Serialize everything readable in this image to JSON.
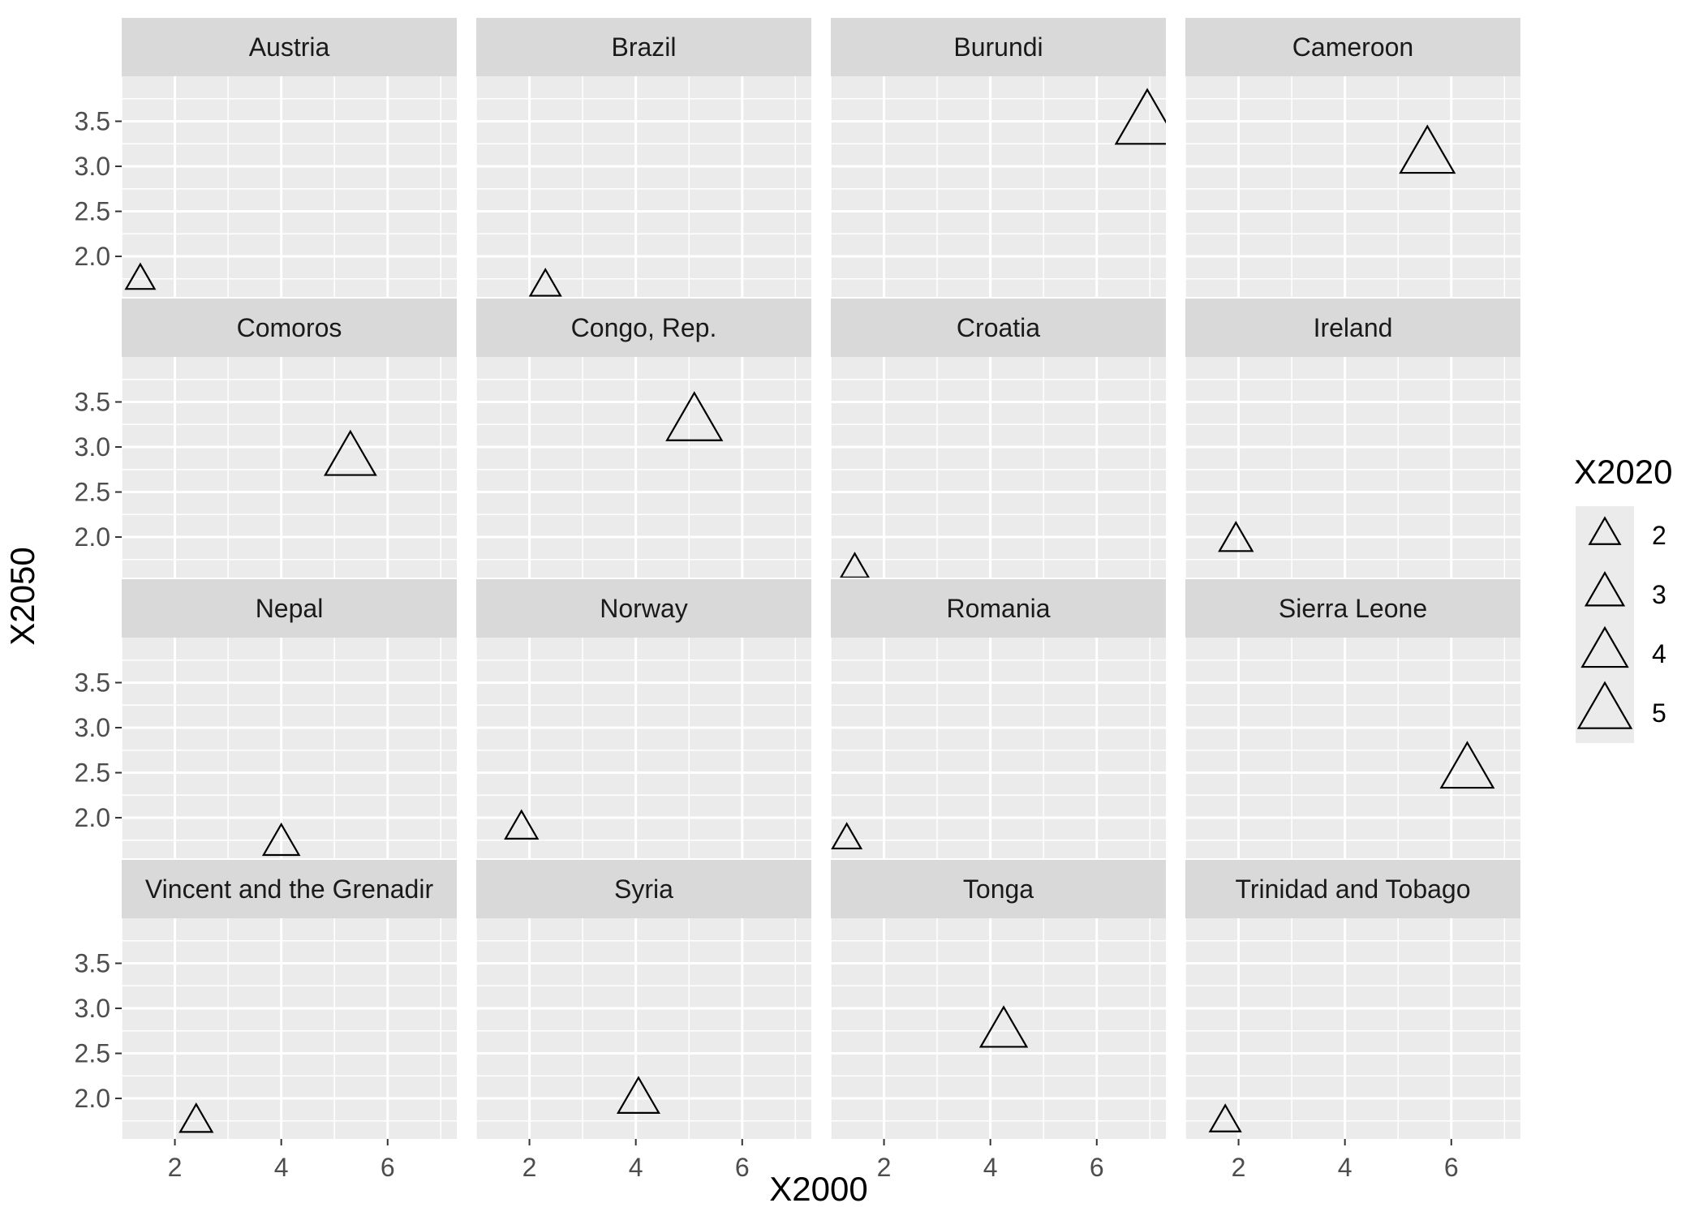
{
  "chart_data": {
    "type": "scatter",
    "facet_layout": "4x4",
    "shape": "triangle-open",
    "xlabel": "X2000",
    "ylabel": "X2050",
    "xlim": [
      1.0,
      7.3
    ],
    "ylim": [
      1.55,
      4.0
    ],
    "x_ticks": [
      2,
      4,
      6
    ],
    "x_tick_labels": [
      "2",
      "4",
      "6"
    ],
    "y_ticks": [
      2.0,
      2.5,
      3.0,
      3.5
    ],
    "y_tick_labels": [
      "2.0",
      "2.5",
      "3.0",
      "3.5"
    ],
    "grid": true,
    "panel_background": "#ebebeb",
    "strip_background": "#d9d9d9",
    "legend": {
      "title": "X2020",
      "position": "right",
      "values": [
        2,
        3,
        4,
        5
      ],
      "labels": [
        "2",
        "3",
        "4",
        "5"
      ]
    },
    "facets": [
      {
        "title": "Austria",
        "points": [
          {
            "x": 1.35,
            "y": 1.73,
            "size": 1.5
          }
        ]
      },
      {
        "title": "Brazil",
        "points": [
          {
            "x": 2.3,
            "y": 1.66,
            "size": 1.7
          }
        ]
      },
      {
        "title": "Burundi",
        "points": [
          {
            "x": 6.95,
            "y": 3.45,
            "size": 5.4
          }
        ]
      },
      {
        "title": "Cameroon",
        "points": [
          {
            "x": 5.55,
            "y": 3.1,
            "size": 4.4
          }
        ]
      },
      {
        "title": "Comoros",
        "points": [
          {
            "x": 5.3,
            "y": 2.85,
            "size": 4.0
          }
        ]
      },
      {
        "title": "Congo, Rep.",
        "points": [
          {
            "x": 5.1,
            "y": 3.25,
            "size": 4.5
          }
        ]
      },
      {
        "title": "Croatia",
        "points": [
          {
            "x": 1.45,
            "y": 1.64,
            "size": 1.4
          }
        ]
      },
      {
        "title": "Ireland",
        "points": [
          {
            "x": 1.95,
            "y": 1.95,
            "size": 2.0
          }
        ]
      },
      {
        "title": "Nepal",
        "points": [
          {
            "x": 4.0,
            "y": 1.7,
            "size": 2.3
          }
        ]
      },
      {
        "title": "Norway",
        "points": [
          {
            "x": 1.85,
            "y": 1.87,
            "size": 1.9
          }
        ]
      },
      {
        "title": "Romania",
        "points": [
          {
            "x": 1.3,
            "y": 1.75,
            "size": 1.5
          }
        ]
      },
      {
        "title": "Sierra Leone",
        "points": [
          {
            "x": 6.3,
            "y": 2.5,
            "size": 4.2
          }
        ]
      },
      {
        "title": "Vincent and the Grenadir",
        "points": [
          {
            "x": 2.4,
            "y": 1.73,
            "size": 1.9
          }
        ]
      },
      {
        "title": "Syria",
        "points": [
          {
            "x": 4.05,
            "y": 1.97,
            "size": 2.9
          }
        ]
      },
      {
        "title": "Tonga",
        "points": [
          {
            "x": 4.25,
            "y": 2.72,
            "size": 3.5
          }
        ]
      },
      {
        "title": "Trinidad and Tobago",
        "points": [
          {
            "x": 1.75,
            "y": 1.73,
            "size": 1.7
          }
        ]
      }
    ]
  }
}
